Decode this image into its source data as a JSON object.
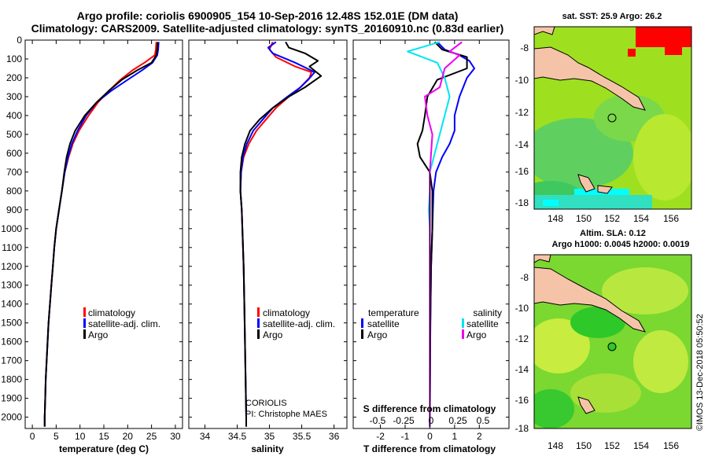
{
  "header": {
    "line1": "Argo profile: coriolis 6900905_154 10-Sep-2016 12.48S 152.01E (DM data)",
    "line2": "Climatology: CARS2009. Satellite-adjusted climatology: synTS_20160910.nc (0.83d earlier)"
  },
  "colors": {
    "climatology": "#ff0000",
    "satellite": "#0000ff",
    "argo": "#000000",
    "sat_t": "#0000ff",
    "sat_s": "#00e5ee",
    "argo_s": "#ee00ee"
  },
  "yaxis": {
    "ticks": [
      0,
      100,
      200,
      300,
      400,
      500,
      600,
      700,
      800,
      900,
      1000,
      1100,
      1200,
      1300,
      1400,
      1500,
      1600,
      1700,
      1800,
      1900,
      2000
    ],
    "ylim": [
      2060,
      0
    ]
  },
  "chart_data": [
    {
      "type": "line",
      "xlabel": "temperature (deg C)",
      "xlim": [
        -1.5,
        31.5
      ],
      "xticks": [
        0,
        5,
        10,
        15,
        20,
        25,
        30
      ],
      "legend": [
        "climatology",
        "satellite-adj. clim.",
        "Argo"
      ],
      "series": [
        {
          "name": "climatology",
          "color": "red",
          "points": [
            [
              26.0,
              10
            ],
            [
              25.9,
              50
            ],
            [
              25.7,
              80
            ],
            [
              23.5,
              120
            ],
            [
              21.0,
              160
            ],
            [
              18.5,
              210
            ],
            [
              16.0,
              270
            ],
            [
              13.8,
              330
            ],
            [
              11.8,
              400
            ],
            [
              9.8,
              480
            ],
            [
              8.5,
              550
            ],
            [
              7.6,
              620
            ],
            [
              6.8,
              700
            ],
            [
              6.2,
              800
            ],
            [
              5.6,
              900
            ],
            [
              5.0,
              1000
            ],
            [
              4.6,
              1100
            ],
            [
              4.3,
              1200
            ],
            [
              4.0,
              1300
            ],
            [
              3.7,
              1400
            ],
            [
              3.4,
              1500
            ],
            [
              3.2,
              1600
            ],
            [
              3.0,
              1700
            ],
            [
              2.8,
              1800
            ],
            [
              2.7,
              1900
            ],
            [
              2.6,
              2000
            ],
            [
              2.6,
              2050
            ]
          ]
        },
        {
          "name": "satellite-adj. clim.",
          "color": "blue",
          "points": [
            [
              26.5,
              10
            ],
            [
              26.4,
              50
            ],
            [
              26.2,
              80
            ],
            [
              25.2,
              120
            ],
            [
              23.0,
              160
            ],
            [
              20.0,
              210
            ],
            [
              16.5,
              270
            ],
            [
              13.5,
              330
            ],
            [
              11.3,
              400
            ],
            [
              9.5,
              480
            ],
            [
              8.3,
              550
            ],
            [
              7.5,
              620
            ],
            [
              6.8,
              700
            ],
            [
              6.2,
              800
            ],
            [
              5.6,
              900
            ],
            [
              5.0,
              1000
            ],
            [
              4.6,
              1100
            ],
            [
              4.3,
              1200
            ],
            [
              4.0,
              1300
            ],
            [
              3.7,
              1400
            ],
            [
              3.4,
              1500
            ],
            [
              3.2,
              1600
            ],
            [
              3.0,
              1700
            ],
            [
              2.8,
              1800
            ],
            [
              2.7,
              1900
            ],
            [
              2.6,
              2000
            ],
            [
              2.6,
              2050
            ]
          ]
        },
        {
          "name": "Argo",
          "color": "black",
          "points": [
            [
              26.3,
              10
            ],
            [
              26.2,
              50
            ],
            [
              26.0,
              80
            ],
            [
              25.0,
              120
            ],
            [
              22.0,
              160
            ],
            [
              18.8,
              210
            ],
            [
              16.0,
              270
            ],
            [
              13.5,
              330
            ],
            [
              11.0,
              400
            ],
            [
              9.0,
              480
            ],
            [
              7.9,
              550
            ],
            [
              7.2,
              620
            ],
            [
              6.7,
              700
            ],
            [
              6.2,
              800
            ],
            [
              5.6,
              900
            ],
            [
              5.0,
              1000
            ],
            [
              4.6,
              1100
            ],
            [
              4.3,
              1200
            ],
            [
              4.0,
              1300
            ],
            [
              3.7,
              1400
            ],
            [
              3.4,
              1500
            ],
            [
              3.2,
              1600
            ],
            [
              3.0,
              1700
            ],
            [
              2.8,
              1800
            ],
            [
              2.7,
              1900
            ],
            [
              2.6,
              2000
            ],
            [
              2.6,
              2050
            ]
          ]
        }
      ]
    },
    {
      "type": "line",
      "xlabel": "salinity",
      "xlim": [
        33.75,
        36.2
      ],
      "xticks": [
        34,
        34.5,
        35,
        35.5,
        36
      ],
      "legend": [
        "climatology",
        "satellite-adj. clim.",
        "Argo"
      ],
      "series": [
        {
          "name": "climatology",
          "color": "red",
          "points": [
            [
              35.05,
              10
            ],
            [
              35.0,
              50
            ],
            [
              35.1,
              90
            ],
            [
              35.4,
              140
            ],
            [
              35.65,
              170
            ],
            [
              35.62,
              200
            ],
            [
              35.48,
              250
            ],
            [
              35.3,
              300
            ],
            [
              35.1,
              360
            ],
            [
              34.95,
              420
            ],
            [
              34.8,
              480
            ],
            [
              34.68,
              550
            ],
            [
              34.6,
              620
            ],
            [
              34.56,
              700
            ],
            [
              34.55,
              800
            ],
            [
              34.57,
              900
            ],
            [
              34.58,
              1000
            ],
            [
              34.6,
              1200
            ],
            [
              34.61,
              1400
            ],
            [
              34.62,
              1600
            ],
            [
              34.63,
              1800
            ],
            [
              34.64,
              2000
            ],
            [
              34.64,
              2050
            ]
          ]
        },
        {
          "name": "satellite-adj. clim.",
          "color": "blue",
          "points": [
            [
              35.1,
              10
            ],
            [
              34.98,
              40
            ],
            [
              35.05,
              70
            ],
            [
              35.4,
              120
            ],
            [
              35.7,
              170
            ],
            [
              35.6,
              210
            ],
            [
              35.48,
              250
            ],
            [
              35.28,
              300
            ],
            [
              35.05,
              360
            ],
            [
              34.9,
              420
            ],
            [
              34.75,
              480
            ],
            [
              34.65,
              550
            ],
            [
              34.59,
              620
            ],
            [
              34.56,
              700
            ],
            [
              34.55,
              800
            ],
            [
              34.57,
              900
            ],
            [
              34.58,
              1000
            ],
            [
              34.6,
              1200
            ],
            [
              34.61,
              1400
            ],
            [
              34.62,
              1600
            ],
            [
              34.63,
              1800
            ],
            [
              34.64,
              2000
            ],
            [
              34.64,
              2050
            ]
          ]
        },
        {
          "name": "Argo",
          "color": "black",
          "points": [
            [
              35.25,
              10
            ],
            [
              35.3,
              40
            ],
            [
              35.55,
              70
            ],
            [
              35.75,
              110
            ],
            [
              35.62,
              140
            ],
            [
              35.8,
              190
            ],
            [
              35.55,
              250
            ],
            [
              35.3,
              300
            ],
            [
              35.05,
              360
            ],
            [
              34.85,
              420
            ],
            [
              34.7,
              480
            ],
            [
              34.62,
              550
            ],
            [
              34.57,
              620
            ],
            [
              34.55,
              700
            ],
            [
              34.55,
              800
            ],
            [
              34.57,
              900
            ],
            [
              34.58,
              1000
            ],
            [
              34.6,
              1200
            ],
            [
              34.61,
              1400
            ],
            [
              34.62,
              1600
            ],
            [
              34.63,
              1800
            ],
            [
              34.64,
              2000
            ],
            [
              34.64,
              2050
            ]
          ]
        }
      ]
    },
    {
      "type": "line",
      "xlabel": "T difference from climatology",
      "xticks": [
        -2,
        -1,
        0,
        1,
        2
      ],
      "xlim": [
        -3.1,
        3.2
      ],
      "secondary_xlabel": "S difference from climatology",
      "secondary_xticks": [
        "-0.5",
        "-0.25",
        "0",
        "0.25",
        "0.5"
      ],
      "legend_temperature": {
        "title": "temperature",
        "items": [
          "satellite",
          "Argo"
        ]
      },
      "legend_salinity": {
        "title": "salinity",
        "items": [
          "satellite",
          "Argo"
        ]
      },
      "series": [
        {
          "name": "satellite",
          "color": "blue",
          "points": [
            [
              0.3,
              10
            ],
            [
              0.6,
              50
            ],
            [
              1.2,
              80
            ],
            [
              1.6,
              110
            ],
            [
              1.8,
              150
            ],
            [
              1.5,
              200
            ],
            [
              1.2,
              300
            ],
            [
              1.0,
              400
            ],
            [
              1.0,
              480
            ],
            [
              0.8,
              550
            ],
            [
              0.5,
              620
            ],
            [
              0.25,
              700
            ],
            [
              0.15,
              800
            ],
            [
              0.1,
              1000
            ],
            [
              0.05,
              1200
            ],
            [
              0.02,
              1500
            ],
            [
              0.0,
              2050
            ]
          ]
        },
        {
          "name": "Argo",
          "color": "black",
          "points": [
            [
              0.2,
              10
            ],
            [
              0.5,
              50
            ],
            [
              1.5,
              90
            ],
            [
              1.5,
              150
            ],
            [
              0.3,
              210
            ],
            [
              -0.1,
              300
            ],
            [
              -0.2,
              400
            ],
            [
              -0.3,
              480
            ],
            [
              -0.5,
              550
            ],
            [
              -0.4,
              620
            ],
            [
              0.0,
              700
            ],
            [
              0.1,
              800
            ],
            [
              0.1,
              1000
            ],
            [
              0.05,
              1200
            ],
            [
              0.02,
              1500
            ],
            [
              0.0,
              2050
            ]
          ]
        },
        {
          "name": "satellite salinity",
          "color": "cyan",
          "points": [
            [
              0.4,
              10
            ],
            [
              -0.9,
              60
            ],
            [
              0.3,
              120
            ],
            [
              0.6,
              200
            ],
            [
              0.8,
              300
            ],
            [
              0.6,
              400
            ],
            [
              0.4,
              500
            ],
            [
              0.2,
              600
            ],
            [
              0.0,
              700
            ],
            [
              0.0,
              800
            ],
            [
              -0.05,
              900
            ],
            [
              0.0,
              1000
            ],
            [
              0.0,
              2050
            ]
          ]
        },
        {
          "name": "Argo salinity",
          "color": "magenta",
          "points": [
            [
              1.3,
              10
            ],
            [
              1.0,
              40
            ],
            [
              0.8,
              60
            ],
            [
              1.2,
              80
            ],
            [
              0.6,
              150
            ],
            [
              0.4,
              250
            ],
            [
              -0.2,
              300
            ],
            [
              -0.1,
              400
            ],
            [
              0.1,
              500
            ],
            [
              0.0,
              700
            ],
            [
              0.0,
              900
            ],
            [
              0.0,
              2050
            ]
          ]
        }
      ]
    }
  ],
  "maps": {
    "sst": {
      "title": "sat. SST: 25.9 Argo: 26.2",
      "yticks": [
        "-8",
        "-10",
        "-12",
        "-14",
        "-16",
        "-18"
      ],
      "xticks": [
        "148",
        "150",
        "152",
        "154",
        "156"
      ]
    },
    "sla": {
      "title1": "Altim. SLA: 0.12",
      "title2": "Argo h1000: 0.0045 h2000: 0.0019",
      "yticks": [
        "-8",
        "-10",
        "-12",
        "-14",
        "-16",
        "-18"
      ],
      "xticks": [
        "148",
        "150",
        "152",
        "154",
        "156"
      ]
    }
  },
  "annotations": {
    "source": "CORIOLIS",
    "pi": "PI: Christophe MAES",
    "stamp": "©IMOS 13-Dec-2018 05:50:52"
  }
}
